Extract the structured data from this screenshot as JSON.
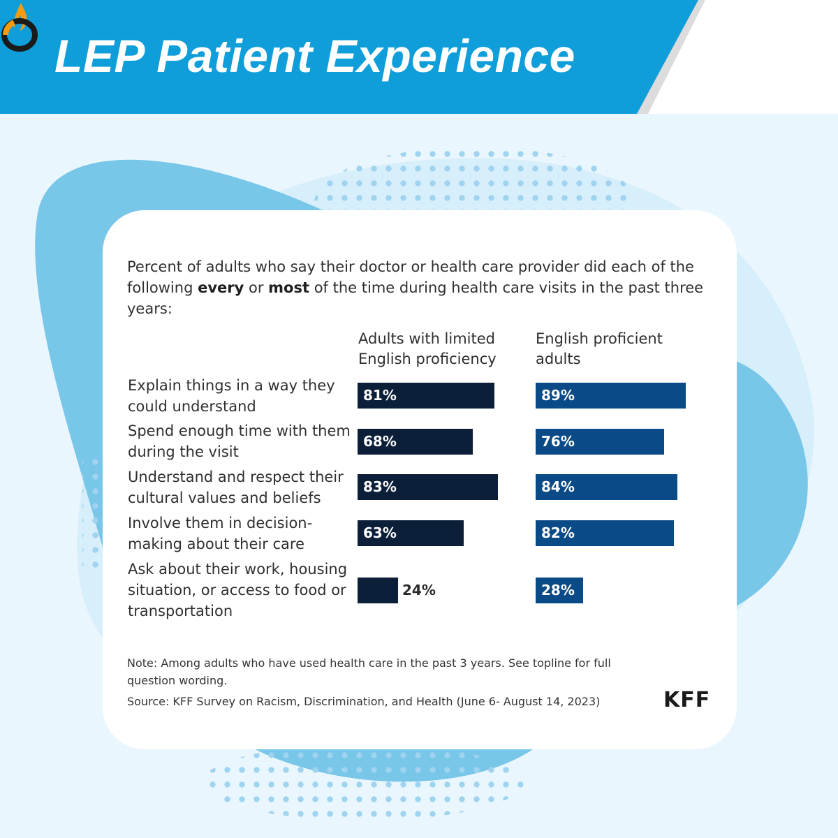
{
  "header": {
    "title": "LEP Patient Experience",
    "colors": {
      "banner": "#0f9ed9",
      "accent_stripe": "#dcdcdc"
    }
  },
  "logo": {
    "icon": "flame-o-logo-icon",
    "flame_color": "#f39c12"
  },
  "chart_data": {
    "type": "bar",
    "orientation": "horizontal",
    "title": "Percent of adults who say their doctor or health care provider did each of the following every or most of the time during health care visits in the past three years:",
    "title_parts": [
      {
        "text": "Percent of adults who say their doctor or health care provider did each of the following ",
        "bold": false
      },
      {
        "text": "every",
        "bold": true
      },
      {
        "text": " or ",
        "bold": false
      },
      {
        "text": "most",
        "bold": true
      },
      {
        "text": " of the time during health care visits in the past three years:",
        "bold": false
      }
    ],
    "categories": [
      "Explain things in a way they\ncould understand",
      "Spend enough time with them\nduring the visit",
      "Understand and respect their\ncultural values and beliefs",
      "Involve them in decision-\nmaking about their care",
      "Ask about their work, housing\nsituation, or access to food or\ntransportation"
    ],
    "series": [
      {
        "name": "Adults with limited\nEnglish proficiency",
        "values": [
          81,
          68,
          83,
          63,
          24
        ],
        "labels": [
          "81%",
          "68%",
          "83%",
          "63%",
          "24%"
        ],
        "color": "#0c1f38"
      },
      {
        "name": "English proficient\nadults",
        "values": [
          89,
          76,
          84,
          82,
          28
        ],
        "labels": [
          "89%",
          "76%",
          "84%",
          "82%",
          "28%"
        ],
        "color": "#0a4a87"
      }
    ],
    "xlim": [
      0,
      100
    ],
    "grid": false,
    "legend": "column headers above bars"
  },
  "footer": {
    "note": "Note: Among adults who have used health care in the past 3 years. See topline for full question wording.",
    "source": "Source: KFF Survey on Racism, Discrimination, and Health (June 6- August 14, 2023)",
    "brand": "KFF"
  }
}
